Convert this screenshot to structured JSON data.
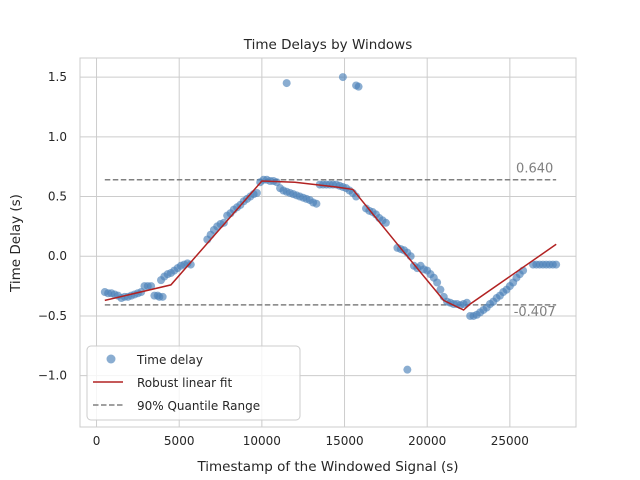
{
  "chart_data": {
    "type": "scatter",
    "title": "Time Delays by Windows",
    "xlabel": "Timestamp of the Windowed Signal (s)",
    "ylabel": "Time Delay (s)",
    "xlim": [
      -1000,
      29000
    ],
    "ylim": [
      -1.43,
      1.66
    ],
    "xticks": [
      0,
      5000,
      10000,
      15000,
      20000,
      25000
    ],
    "xtick_labels": [
      "0",
      "5000",
      "10000",
      "15000",
      "20000",
      "25000"
    ],
    "yticks": [
      -1.0,
      -0.5,
      0.0,
      0.5,
      1.0,
      1.5
    ],
    "ytick_labels": [
      "−1.0",
      "−0.5",
      "0.0",
      "0.5",
      "1.0",
      "1.5"
    ],
    "grid": true,
    "legend_position": "lower-left",
    "series": [
      {
        "name": "Time delay",
        "kind": "scatter",
        "color": "#4c81b8",
        "x": [
          500,
          700,
          900,
          1100,
          1300,
          1500,
          1700,
          1900,
          2100,
          2300,
          2500,
          2700,
          2900,
          3100,
          3300,
          3500,
          3700,
          3900,
          4100,
          4300,
          4500,
          4700,
          4900,
          5100,
          5300,
          5500,
          5700,
          6700,
          6900,
          7100,
          7300,
          7500,
          7700,
          7900,
          8100,
          8300,
          8500,
          8700,
          8900,
          9100,
          9300,
          9500,
          9700,
          9900,
          10100,
          10300,
          10500,
          10700,
          10900,
          11100,
          11300,
          11500,
          11700,
          11900,
          12100,
          12300,
          12500,
          12700,
          12900,
          13100,
          13300,
          13500,
          13700,
          13900,
          14100,
          14300,
          14500,
          14700,
          14900,
          15100,
          15300,
          15500,
          15700,
          16300,
          16500,
          16700,
          16900,
          17100,
          17300,
          17500,
          18200,
          18400,
          18600,
          18800,
          19000,
          19200,
          19400,
          19600,
          19800,
          20000,
          20200,
          20400,
          20600,
          20800,
          21000,
          21200,
          21400,
          21600,
          21800,
          22000,
          22200,
          22400,
          22600,
          22800,
          23000,
          23200,
          23400,
          23600,
          23800,
          24000,
          24200,
          24400,
          24600,
          24800,
          25000,
          25200,
          25400,
          25600,
          25800,
          26400,
          26600,
          26800,
          27000,
          27200,
          27400,
          27600,
          27800,
          11500,
          14900,
          15700,
          15850,
          18800,
          3800,
          4000
        ],
        "y": [
          -0.3,
          -0.31,
          -0.31,
          -0.32,
          -0.33,
          -0.35,
          -0.34,
          -0.34,
          -0.33,
          -0.32,
          -0.31,
          -0.3,
          -0.25,
          -0.25,
          -0.25,
          -0.33,
          -0.33,
          -0.2,
          -0.17,
          -0.15,
          -0.14,
          -0.12,
          -0.1,
          -0.08,
          -0.07,
          -0.06,
          -0.07,
          0.14,
          0.18,
          0.22,
          0.25,
          0.27,
          0.28,
          0.34,
          0.36,
          0.39,
          0.41,
          0.43,
          0.46,
          0.48,
          0.5,
          0.52,
          0.53,
          0.62,
          0.64,
          0.64,
          0.63,
          0.63,
          0.62,
          0.57,
          0.55,
          0.54,
          0.53,
          0.52,
          0.51,
          0.5,
          0.49,
          0.48,
          0.47,
          0.45,
          0.44,
          0.6,
          0.6,
          0.6,
          0.6,
          0.6,
          0.6,
          0.59,
          0.58,
          0.57,
          0.55,
          0.53,
          0.5,
          0.4,
          0.38,
          0.37,
          0.35,
          0.32,
          0.3,
          0.28,
          0.07,
          0.06,
          0.05,
          0.03,
          0.0,
          -0.08,
          -0.1,
          -0.08,
          -0.11,
          -0.12,
          -0.15,
          -0.18,
          -0.22,
          -0.28,
          -0.34,
          -0.38,
          -0.39,
          -0.4,
          -0.4,
          -0.41,
          -0.4,
          -0.39,
          -0.5,
          -0.5,
          -0.49,
          -0.47,
          -0.45,
          -0.43,
          -0.4,
          -0.38,
          -0.35,
          -0.33,
          -0.3,
          -0.28,
          -0.25,
          -0.22,
          -0.18,
          -0.15,
          -0.12,
          -0.07,
          -0.07,
          -0.07,
          -0.07,
          -0.07,
          -0.07,
          -0.07,
          -0.07,
          1.45,
          1.5,
          1.43,
          1.42,
          -0.95,
          -0.34,
          -0.34
        ]
      },
      {
        "name": "Robust linear fit",
        "kind": "line",
        "color": "#b22222",
        "x": [
          500,
          4500,
          10000,
          12000,
          14500,
          15500,
          18500,
          21000,
          22200,
          22600,
          27800
        ],
        "y": [
          -0.37,
          -0.24,
          0.63,
          0.62,
          0.58,
          0.56,
          0.05,
          -0.37,
          -0.45,
          -0.4,
          0.1
        ]
      },
      {
        "name": "90% Quantile Range",
        "kind": "hline-dashed",
        "color": "#808080",
        "values": [
          0.64,
          -0.407
        ],
        "x_range": [
          500,
          27800
        ]
      }
    ],
    "annotations": [
      {
        "text": "0.640",
        "x": 26500,
        "y": 0.7
      },
      {
        "text": "-0.407",
        "x": 26500,
        "y": -0.5
      }
    ]
  }
}
